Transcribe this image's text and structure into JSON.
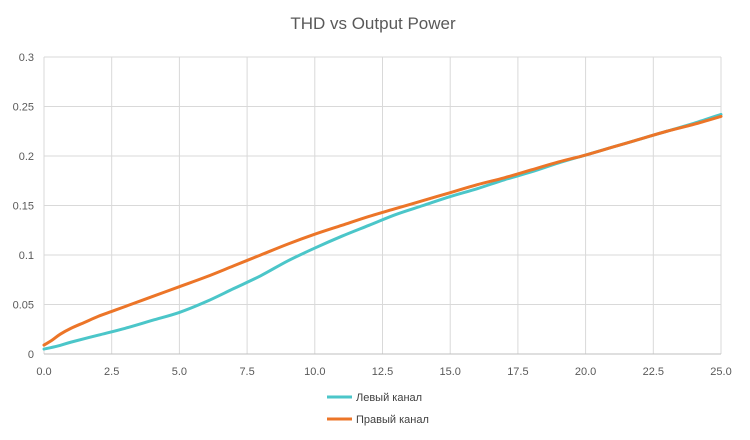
{
  "chart_data": {
    "type": "line",
    "title": "THD vs Output Power",
    "xlabel": "",
    "ylabel": "",
    "xlim": [
      0,
      25
    ],
    "ylim": [
      0,
      0.3
    ],
    "x_ticks": [
      0,
      2.5,
      5,
      7.5,
      10,
      12.5,
      15,
      17.5,
      20,
      22.5,
      25
    ],
    "x_tick_labels": [
      "0.0",
      "2.5",
      "5.0",
      "7.5",
      "10.0",
      "12.5",
      "15.0",
      "17.5",
      "20.0",
      "22.5",
      "25.0"
    ],
    "y_ticks": [
      0,
      0.05,
      0.1,
      0.15,
      0.2,
      0.25,
      0.3
    ],
    "y_tick_labels": [
      "0",
      "0.05",
      "0.1",
      "0.15",
      "0.2",
      "0.25",
      "0.3"
    ],
    "grid": true,
    "legend_position": "bottom",
    "series": [
      {
        "name": "Левый канал",
        "color": "#4bc6c9",
        "x": [
          0,
          0.5,
          1,
          2,
          3,
          4,
          5,
          6,
          7,
          8,
          9,
          10,
          11,
          12,
          13,
          14,
          15,
          16,
          17,
          18,
          19,
          20,
          21,
          22,
          23,
          24,
          25
        ],
        "y": [
          0.005,
          0.008,
          0.012,
          0.019,
          0.026,
          0.034,
          0.042,
          0.053,
          0.066,
          0.079,
          0.094,
          0.107,
          0.119,
          0.13,
          0.141,
          0.15,
          0.159,
          0.167,
          0.176,
          0.184,
          0.193,
          0.201,
          0.209,
          0.217,
          0.225,
          0.233,
          0.242
        ]
      },
      {
        "name": "Правый канал",
        "color": "#ec7528",
        "x": [
          0,
          0.3,
          0.6,
          1,
          1.5,
          2,
          2.5,
          3,
          4,
          5,
          6,
          7,
          8,
          9,
          10,
          11,
          12,
          13,
          14,
          15,
          16,
          17,
          18,
          19,
          20,
          21,
          22,
          23,
          24,
          25
        ],
        "y": [
          0.009,
          0.014,
          0.02,
          0.026,
          0.032,
          0.038,
          0.043,
          0.048,
          0.058,
          0.068,
          0.078,
          0.089,
          0.1,
          0.111,
          0.121,
          0.13,
          0.139,
          0.147,
          0.155,
          0.163,
          0.171,
          0.178,
          0.186,
          0.194,
          0.201,
          0.209,
          0.217,
          0.225,
          0.232,
          0.24
        ]
      }
    ]
  }
}
